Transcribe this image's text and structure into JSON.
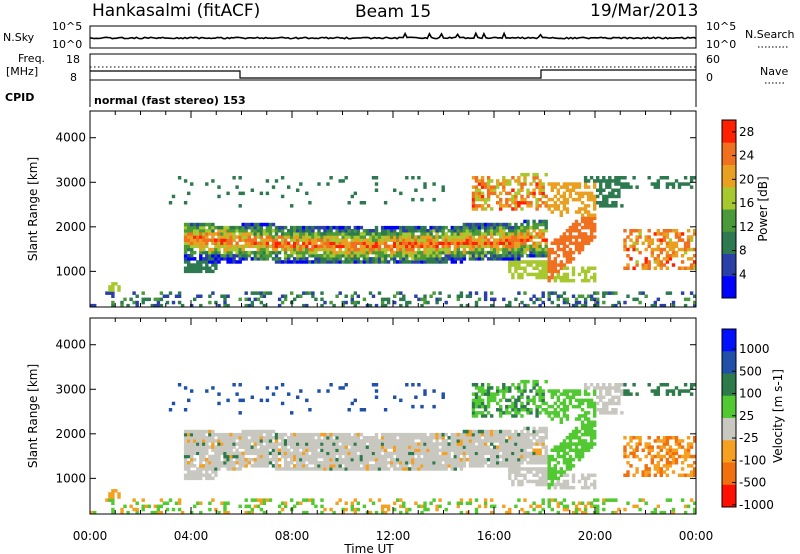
{
  "header": {
    "station": "Hankasalmi (fitACF)",
    "beam": "Beam 15",
    "date": "19/Mar/2013"
  },
  "noise_panel": {
    "left_label": "N.Sky",
    "right_label": "N.Search",
    "left_ticks": [
      "10^5",
      "10^0"
    ],
    "right_ticks": [
      "10^5",
      "10^0"
    ]
  },
  "freq_panel": {
    "left_label_line1": "Freq.",
    "left_label_line2": "[MHz]",
    "left_ticks": [
      "18",
      "8"
    ],
    "right_label": "Nave",
    "right_ticks": [
      "60",
      "0"
    ]
  },
  "cpid_panel": {
    "label": "CPID",
    "text": "normal (fast stereo) 153"
  },
  "colors": {
    "power": [
      "#0000ff",
      "#2a40a8",
      "#2e7a50",
      "#4a9a3a",
      "#a8c830",
      "#e9a020",
      "#f07020",
      "#ff2000"
    ],
    "velocity": [
      "#0010ff",
      "#2050a8",
      "#2d7a4a",
      "#52c832",
      "#c8c8c0",
      "#f5a020",
      "#f07010",
      "#ff1000"
    ]
  },
  "chart_data": [
    {
      "type": "heatmap",
      "title": "Power",
      "xlabel": "",
      "ylabel": "Slant Range [km]",
      "x_ticks": [
        "00:00",
        "04:00",
        "08:00",
        "12:00",
        "16:00",
        "20:00",
        "00:00"
      ],
      "y_ticks": [
        "1000",
        "2000",
        "3000",
        "4000"
      ],
      "ylim": [
        200,
        4600
      ],
      "colorbar": {
        "label": "Power [dB]",
        "ticks": [
          "4",
          "8",
          "12",
          "16",
          "20",
          "24",
          "28"
        ],
        "range": [
          0,
          30
        ]
      }
    },
    {
      "type": "heatmap",
      "title": "Velocity",
      "xlabel": "Time UT",
      "ylabel": "Slant Range [km]",
      "x_ticks": [
        "00:00",
        "04:00",
        "08:00",
        "12:00",
        "16:00",
        "20:00",
        "00:00"
      ],
      "y_ticks": [
        "1000",
        "2000",
        "3000",
        "4000"
      ],
      "ylim": [
        200,
        4600
      ],
      "colorbar": {
        "label": "Velocity [m s-1]",
        "ticks": [
          "1000",
          "500",
          "100",
          "25",
          "-25",
          "-100",
          "-500",
          "-1000"
        ]
      }
    }
  ]
}
